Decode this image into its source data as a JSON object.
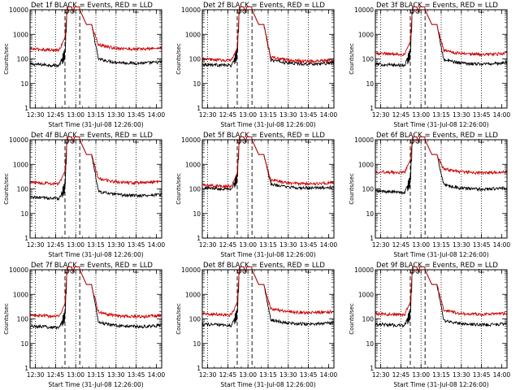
{
  "figure": {
    "background": "#ffffff",
    "axis_color": "#000000"
  },
  "chart_data": [
    {
      "type": "line",
      "detector": "1f",
      "title": "Det 1f BLACK = Events, RED = LLD",
      "xlabel": "Start Time (31-Jul-08 12:26:00)",
      "ylabel": "Counts/sec",
      "x_tick_labels": [
        "12:30",
        "12:45",
        "13:00",
        "13:15",
        "13:30",
        "13:45",
        "14:00"
      ],
      "y_tick_labels": [
        "1",
        "10",
        "100",
        "1000",
        "10000"
      ],
      "x_unit": "minutes after 12:26:00",
      "xlim": [
        0,
        98
      ],
      "ylim": [
        1,
        10000
      ],
      "y_scale": "log",
      "dotted_lines_x": [
        4,
        19,
        34,
        49,
        64,
        79
      ],
      "dashed_lines_x": [
        26,
        37
      ],
      "series": [
        {
          "name": "Events",
          "color": "#000000",
          "pre_level": 60,
          "peak": 10000,
          "post_level": 75
        },
        {
          "name": "LLD",
          "color": "#cc0000",
          "pre_level": 250,
          "peak": 10000,
          "post_level": 280
        }
      ]
    },
    {
      "type": "line",
      "detector": "2f",
      "title": "Det 2f BLACK = Events, RED = LLD",
      "xlabel": "Start Time (31-Jul-08 12:26:00)",
      "ylabel": "Counts/sec",
      "x_tick_labels": [
        "12:30",
        "12:45",
        "13:00",
        "13:15",
        "13:30",
        "13:45",
        "14:00"
      ],
      "y_tick_labels": [
        "1",
        "10",
        "100",
        "1000",
        "10000"
      ],
      "x_unit": "minutes after 12:26:00",
      "xlim": [
        0,
        98
      ],
      "ylim": [
        1,
        10000
      ],
      "y_scale": "log",
      "dotted_lines_x": [
        4,
        19,
        34,
        49,
        64,
        79
      ],
      "dashed_lines_x": [
        26,
        37
      ],
      "series": [
        {
          "name": "Events",
          "color": "#000000",
          "pre_level": 60,
          "peak": 10000,
          "post_level": 70
        },
        {
          "name": "LLD",
          "color": "#cc0000",
          "pre_level": 95,
          "peak": 10000,
          "post_level": 90
        }
      ]
    },
    {
      "type": "line",
      "detector": "3f",
      "title": "Det 3f BLACK = Events, RED = LLD",
      "xlabel": "Start Time (31-Jul-08 12:26:00)",
      "ylabel": "Counts/sec",
      "x_tick_labels": [
        "12:30",
        "12:45",
        "13:00",
        "13:15",
        "13:30",
        "13:45",
        "14:00"
      ],
      "y_tick_labels": [
        "1",
        "10",
        "100",
        "1000",
        "10000"
      ],
      "x_unit": "minutes after 12:26:00",
      "xlim": [
        0,
        98
      ],
      "ylim": [
        1,
        10000
      ],
      "y_scale": "log",
      "dotted_lines_x": [
        4,
        19,
        34,
        49,
        64,
        79
      ],
      "dashed_lines_x": [
        26,
        37
      ],
      "series": [
        {
          "name": "Events",
          "color": "#000000",
          "pre_level": 60,
          "peak": 10000,
          "post_level": 70
        },
        {
          "name": "LLD",
          "color": "#cc0000",
          "pre_level": 170,
          "peak": 10000,
          "post_level": 170
        }
      ]
    },
    {
      "type": "line",
      "detector": "4f",
      "title": "Det 4f BLACK = Events, RED = LLD",
      "xlabel": "Start Time (31-Jul-08 12:26:00)",
      "ylabel": "Counts/sec",
      "x_tick_labels": [
        "12:30",
        "12:45",
        "13:00",
        "13:15",
        "13:30",
        "13:45",
        "14:00"
      ],
      "y_tick_labels": [
        "1",
        "10",
        "100",
        "1000",
        "10000"
      ],
      "x_unit": "minutes after 12:26:00",
      "xlim": [
        0,
        98
      ],
      "ylim": [
        1,
        10000
      ],
      "y_scale": "log",
      "dotted_lines_x": [
        4,
        19,
        34,
        49,
        64,
        79
      ],
      "dashed_lines_x": [
        26,
        37
      ],
      "series": [
        {
          "name": "Events",
          "color": "#000000",
          "pre_level": 45,
          "peak": 10000,
          "post_level": 60
        },
        {
          "name": "LLD",
          "color": "#cc0000",
          "pre_level": 180,
          "peak": 10000,
          "post_level": 200
        }
      ]
    },
    {
      "type": "line",
      "detector": "5f",
      "title": "Det 5f BLACK = Events, RED = LLD",
      "xlabel": "Start Time (31-Jul-08 12:26:00)",
      "ylabel": "Counts/sec",
      "x_tick_labels": [
        "12:30",
        "12:45",
        "13:00",
        "13:15",
        "13:30",
        "13:45",
        "14:00"
      ],
      "y_tick_labels": [
        "1",
        "10",
        "100",
        "1000",
        "10000"
      ],
      "x_unit": "minutes after 12:26:00",
      "xlim": [
        0,
        98
      ],
      "ylim": [
        1,
        10000
      ],
      "y_scale": "log",
      "dotted_lines_x": [
        4,
        19,
        34,
        49,
        64,
        79
      ],
      "dashed_lines_x": [
        26,
        37
      ],
      "series": [
        {
          "name": "Events",
          "color": "#000000",
          "pre_level": 110,
          "peak": 10000,
          "post_level": 120
        },
        {
          "name": "LLD",
          "color": "#cc0000",
          "pre_level": 140,
          "peak": 10000,
          "post_level": 180
        }
      ]
    },
    {
      "type": "line",
      "detector": "6f",
      "title": "Det 6f BLACK = Events, RED = LLD",
      "xlabel": "Start Time (31-Jul-08 12:26:00)",
      "ylabel": "Counts/sec",
      "x_tick_labels": [
        "12:30",
        "12:45",
        "13:00",
        "13:15",
        "13:30",
        "13:45",
        "14:00"
      ],
      "y_tick_labels": [
        "1",
        "10",
        "100",
        "1000",
        "10000"
      ],
      "x_unit": "minutes after 12:26:00",
      "xlim": [
        0,
        98
      ],
      "ylim": [
        1,
        10000
      ],
      "y_scale": "log",
      "dotted_lines_x": [
        4,
        19,
        34,
        49,
        64,
        79
      ],
      "dashed_lines_x": [
        26,
        37
      ],
      "series": [
        {
          "name": "Events",
          "color": "#000000",
          "pre_level": 80,
          "peak": 10000,
          "post_level": 110
        },
        {
          "name": "LLD",
          "color": "#cc0000",
          "pre_level": 500,
          "peak": 10000,
          "post_level": 500
        }
      ]
    },
    {
      "type": "line",
      "detector": "7f",
      "title": "Det 7f BLACK = Events, RED = LLD",
      "xlabel": "Start Time (31-Jul-08 12:26:00)",
      "ylabel": "Counts/sec",
      "x_tick_labels": [
        "12:30",
        "12:45",
        "13:00",
        "13:15",
        "13:30",
        "13:45",
        "14:00"
      ],
      "y_tick_labels": [
        "1",
        "10",
        "100",
        "1000",
        "10000"
      ],
      "x_unit": "minutes after 12:26:00",
      "xlim": [
        0,
        98
      ],
      "ylim": [
        1,
        10000
      ],
      "y_scale": "log",
      "dotted_lines_x": [
        4,
        19,
        34,
        49,
        64,
        79
      ],
      "dashed_lines_x": [
        26,
        37
      ],
      "series": [
        {
          "name": "Events",
          "color": "#000000",
          "pre_level": 50,
          "peak": 10000,
          "post_level": 55
        },
        {
          "name": "LLD",
          "color": "#cc0000",
          "pre_level": 140,
          "peak": 10000,
          "post_level": 140
        }
      ]
    },
    {
      "type": "line",
      "detector": "8f",
      "title": "Det 8f BLACK = Events, RED = LLD",
      "xlabel": "Start Time (31-Jul-08 12:26:00)",
      "ylabel": "Counts/sec",
      "x_tick_labels": [
        "12:30",
        "12:45",
        "13:00",
        "13:15",
        "13:30",
        "13:45",
        "14:00"
      ],
      "y_tick_labels": [
        "1",
        "10",
        "100",
        "1000",
        "10000"
      ],
      "x_unit": "minutes after 12:26:00",
      "xlim": [
        0,
        98
      ],
      "ylim": [
        1,
        10000
      ],
      "y_scale": "log",
      "dotted_lines_x": [
        4,
        19,
        34,
        49,
        64,
        79
      ],
      "dashed_lines_x": [
        26,
        37
      ],
      "series": [
        {
          "name": "Events",
          "color": "#000000",
          "pre_level": 60,
          "peak": 10000,
          "post_level": 70
        },
        {
          "name": "LLD",
          "color": "#cc0000",
          "pre_level": 160,
          "peak": 10000,
          "post_level": 200
        }
      ]
    },
    {
      "type": "line",
      "detector": "9f",
      "title": "Det 9f BLACK = Events, RED = LLD",
      "xlabel": "Start Time (31-Jul-08 12:26:00)",
      "ylabel": "Counts/sec",
      "x_tick_labels": [
        "12:30",
        "12:45",
        "13:00",
        "13:15",
        "13:30",
        "13:45",
        "14:00"
      ],
      "y_tick_labels": [
        "1",
        "10",
        "100",
        "1000",
        "10000"
      ],
      "x_unit": "minutes after 12:26:00",
      "xlim": [
        0,
        98
      ],
      "ylim": [
        1,
        10000
      ],
      "y_scale": "log",
      "dotted_lines_x": [
        4,
        19,
        34,
        49,
        64,
        79
      ],
      "dashed_lines_x": [
        26,
        37
      ],
      "series": [
        {
          "name": "Events",
          "color": "#000000",
          "pre_level": 60,
          "peak": 10000,
          "post_level": 65
        },
        {
          "name": "LLD",
          "color": "#cc0000",
          "pre_level": 160,
          "peak": 10000,
          "post_level": 170
        }
      ]
    }
  ]
}
